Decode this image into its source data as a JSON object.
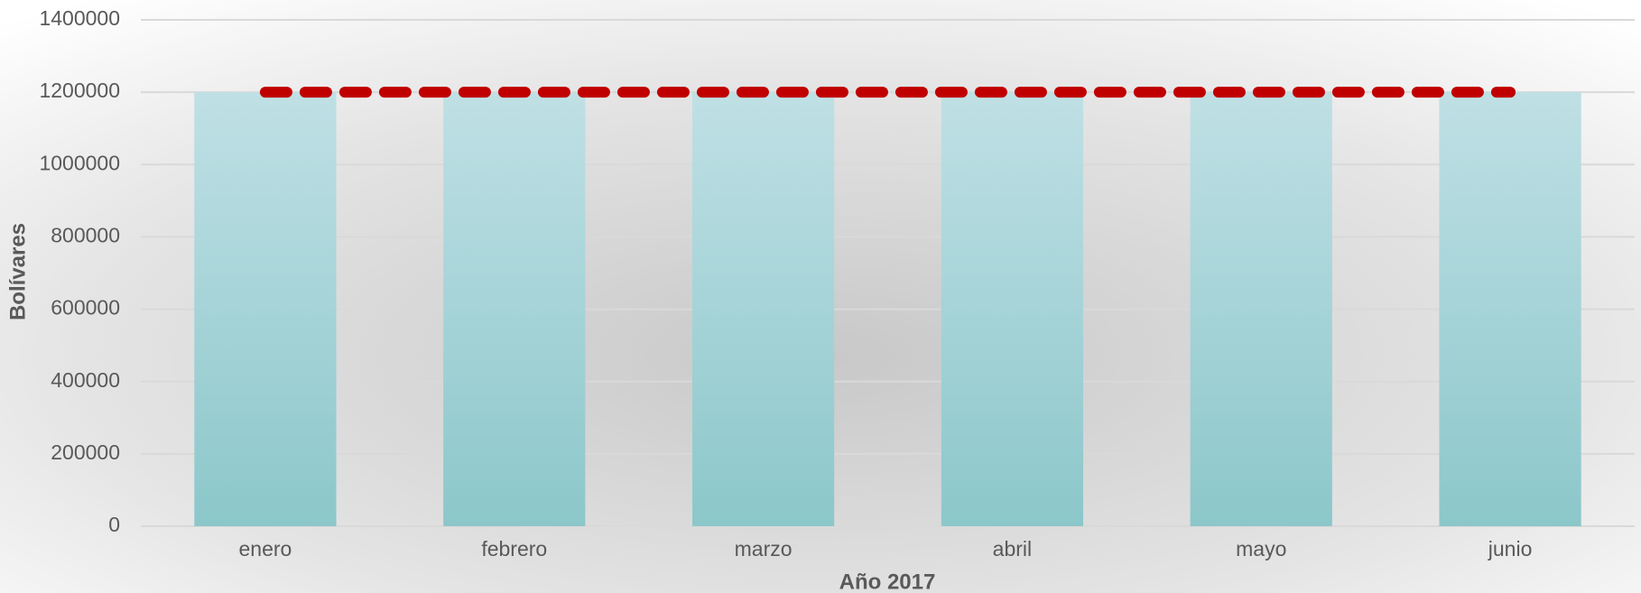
{
  "chart_data": {
    "type": "bar",
    "x_label": "Año 2017",
    "y_label": "Bolívares",
    "categories": [
      "enero",
      "febrero",
      "marzo",
      "abril",
      "mayo",
      "junio"
    ],
    "series": [
      {
        "type": "bar",
        "color": "#8fc9cd",
        "values": [
          1200000,
          1200000,
          1200000,
          1200000,
          1200000,
          1200000
        ]
      },
      {
        "type": "line",
        "color": "#c00000",
        "values": [
          1200000,
          1200000,
          1200000,
          1200000,
          1200000,
          1200000
        ]
      }
    ],
    "ylim": [
      0,
      1400000
    ],
    "yticks": [
      0,
      200000,
      400000,
      600000,
      800000,
      1000000,
      1200000,
      1400000
    ],
    "grid": true
  }
}
